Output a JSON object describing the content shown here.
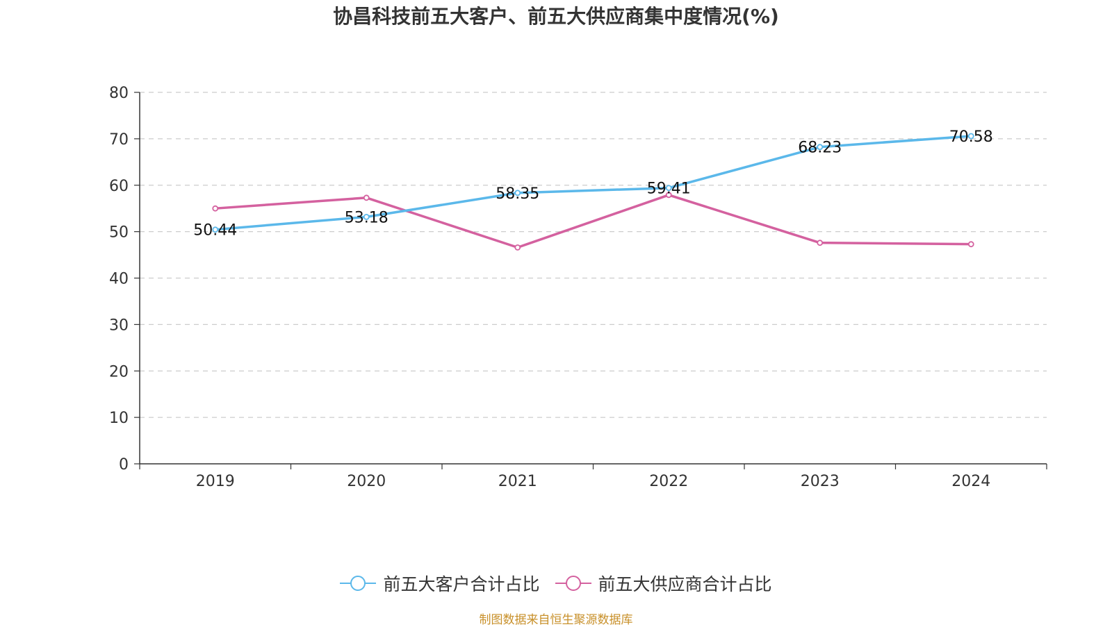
{
  "title": "协昌科技前五大客户、前五大供应商集中度情况(%)",
  "source": "制图数据来自恒生聚源数据库",
  "chart_data": {
    "type": "line",
    "title": "协昌科技前五大客户、前五大供应商集中度情况(%)",
    "categories": [
      "2019",
      "2020",
      "2021",
      "2022",
      "2023",
      "2024"
    ],
    "y_ticks": [
      "0",
      "10",
      "20",
      "30",
      "40",
      "50",
      "60",
      "70",
      "80"
    ],
    "ylim": [
      0,
      80
    ],
    "grid": "dashed horizontal",
    "legend_position": "bottom",
    "series": [
      {
        "name": "前五大客户合计占比",
        "color": "#5bb8ea",
        "values": [
          50.44,
          53.18,
          58.35,
          59.41,
          68.23,
          70.58
        ],
        "labels": [
          "50.44",
          "53.18",
          "58.35",
          "59.41",
          "68.23",
          "70.58"
        ]
      },
      {
        "name": "前五大供应商合计占比",
        "color": "#d4619f",
        "values": [
          55.0,
          57.3,
          46.6,
          57.9,
          47.6,
          47.3
        ],
        "labels": []
      }
    ]
  }
}
